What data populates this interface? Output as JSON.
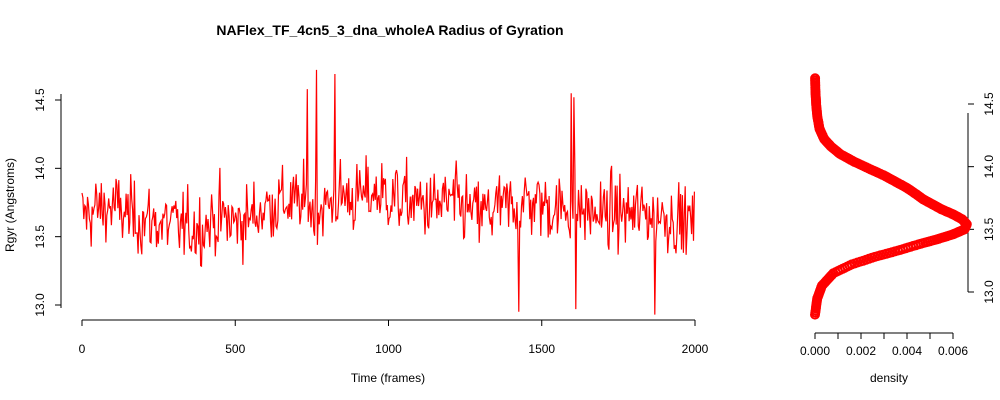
{
  "chart_data": [
    {
      "type": "line",
      "title": "NAFlex_TF_4cn5_3_dna_wholeA Radius of Gyration",
      "xlabel": "Time (frames)",
      "ylabel": "Rgyr (Angstroms)",
      "xlim": [
        0,
        2000
      ],
      "ylim": [
        13.0,
        14.5
      ],
      "xticks": [
        "0",
        "500",
        "1000",
        "1500",
        "2000"
      ],
      "yticks": [
        "13.0",
        "13.5",
        "14.0",
        "14.5"
      ],
      "color": "#ff0000",
      "grid": false,
      "series": [
        {
          "x": [
            0,
            50,
            100,
            150,
            200,
            250,
            300,
            350,
            400,
            450,
            500,
            550,
            600,
            650,
            700,
            750,
            800,
            850,
            900,
            950,
            1000,
            1050,
            1100,
            1150,
            1200,
            1250,
            1300,
            1350,
            1400,
            1450,
            1500,
            1550,
            1600,
            1650,
            1700,
            1750,
            1800,
            1850,
            1900,
            1950,
            2000
          ],
          "y": [
            13.65,
            13.7,
            13.72,
            13.66,
            13.62,
            13.6,
            13.58,
            13.56,
            13.58,
            13.64,
            13.6,
            13.64,
            13.72,
            13.76,
            13.74,
            13.7,
            13.72,
            13.8,
            13.78,
            13.82,
            13.8,
            13.76,
            13.74,
            13.72,
            13.76,
            13.7,
            13.66,
            13.7,
            13.72,
            13.76,
            13.74,
            13.7,
            13.72,
            13.68,
            13.66,
            13.68,
            13.66,
            13.68,
            13.66,
            13.62,
            13.6
          ]
        }
      ],
      "peaks": [
        {
          "x": 765,
          "y": 14.72
        },
        {
          "x": 825,
          "y": 14.69
        },
        {
          "x": 735,
          "y": 14.58
        },
        {
          "x": 1595,
          "y": 14.55
        },
        {
          "x": 1605,
          "y": 14.52
        },
        {
          "x": 1610,
          "y": 12.97
        },
        {
          "x": 1870,
          "y": 12.93
        },
        {
          "x": 1425,
          "y": 12.95
        }
      ]
    },
    {
      "type": "area",
      "xlabel": "density",
      "xlim": [
        0,
        0.0068
      ],
      "ylim": [
        13.0,
        14.5
      ],
      "xticks": [
        "0.000",
        "0.002",
        "0.004",
        "0.006"
      ],
      "yticks": [
        "13.0",
        "13.5",
        "14.0",
        "14.5"
      ],
      "color": "#ff0000",
      "density": {
        "y": [
          12.82,
          12.95,
          13.05,
          13.15,
          13.22,
          13.28,
          13.33,
          13.38,
          13.42,
          13.46,
          13.5,
          13.54,
          13.58,
          13.62,
          13.66,
          13.7,
          13.74,
          13.78,
          13.83,
          13.88,
          13.93,
          13.98,
          14.04,
          14.1,
          14.16,
          14.22,
          14.3,
          14.4,
          14.5,
          14.6,
          14.72
        ],
        "x": [
          0.0,
          0.0001,
          0.0003,
          0.0008,
          0.0016,
          0.0026,
          0.0036,
          0.0045,
          0.0053,
          0.006,
          0.0065,
          0.0066,
          0.0064,
          0.006,
          0.0055,
          0.0051,
          0.0047,
          0.0044,
          0.004,
          0.0035,
          0.003,
          0.0024,
          0.0017,
          0.0011,
          0.0007,
          0.0004,
          0.0002,
          0.0001,
          5e-05,
          2e-05,
          0.0
        ]
      }
    }
  ]
}
